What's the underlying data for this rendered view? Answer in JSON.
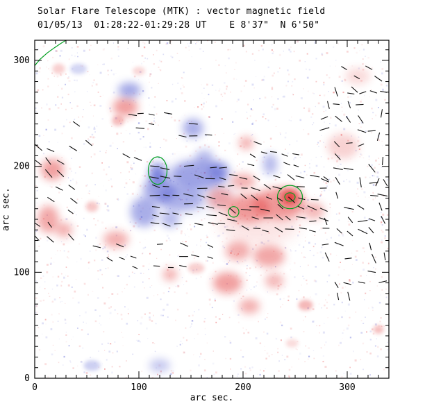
{
  "chart_data": {
    "type": "heatmap",
    "title": "Solar Flare Telescope (MTK) : vector magnetic field",
    "subtitle": "01/05/13  01:28:22-01:29:28 UT    E 8'37\"  N 6'50\"",
    "xlabel": "arc sec.",
    "ylabel": "arc sec.",
    "xlim": [
      0,
      340
    ],
    "ylim": [
      0,
      319
    ],
    "xticks": [
      0,
      100,
      200,
      300
    ],
    "yticks": [
      0,
      100,
      200,
      300
    ],
    "minor_tick_step": 10,
    "colors": {
      "positive": "#e23b3b",
      "negative": "#4a52cf",
      "contour": "#00a020",
      "vector": "#101010",
      "frame": "#000000",
      "background": "#ffffff"
    },
    "red_blobs": [
      [
        245,
        171,
        4,
        4,
        1.0
      ],
      [
        245,
        171,
        9,
        8,
        0.95
      ],
      [
        235,
        165,
        25,
        15,
        0.55
      ],
      [
        205,
        160,
        20,
        13,
        0.55
      ],
      [
        178,
        170,
        12,
        10,
        0.5
      ],
      [
        200,
        186,
        12,
        7,
        0.5
      ],
      [
        268,
        158,
        10,
        8,
        0.45
      ],
      [
        203,
        222,
        7,
        6,
        0.5
      ],
      [
        225,
        115,
        15,
        10,
        0.55
      ],
      [
        195,
        120,
        12,
        9,
        0.5
      ],
      [
        185,
        90,
        14,
        10,
        0.6
      ],
      [
        206,
        68,
        10,
        7,
        0.5
      ],
      [
        230,
        92,
        9,
        7,
        0.45
      ],
      [
        130,
        98,
        7,
        6,
        0.5
      ],
      [
        155,
        104,
        8,
        5,
        0.3
      ],
      [
        87,
        256,
        12,
        9,
        0.6
      ],
      [
        80,
        243,
        6,
        5,
        0.4
      ],
      [
        17,
        197,
        11,
        10,
        0.6
      ],
      [
        13,
        150,
        10,
        13,
        0.55
      ],
      [
        28,
        140,
        8,
        7,
        0.5
      ],
      [
        78,
        131,
        12,
        8,
        0.5
      ],
      [
        55,
        162,
        6,
        5,
        0.35
      ],
      [
        296,
        219,
        15,
        12,
        0.28
      ],
      [
        310,
        285,
        12,
        8,
        0.22
      ],
      [
        260,
        69,
        7,
        5,
        0.45
      ],
      [
        330,
        46,
        5,
        4,
        0.4
      ],
      [
        100,
        290,
        6,
        4,
        0.25
      ],
      [
        23,
        292,
        6,
        5,
        0.3
      ],
      [
        247,
        33,
        6,
        4,
        0.22
      ],
      [
        215,
        150,
        40,
        25,
        0.16
      ]
    ],
    "blue_blobs": [
      [
        157,
        192,
        26,
        14,
        0.6
      ],
      [
        120,
        178,
        16,
        12,
        0.6
      ],
      [
        118,
        193,
        8,
        10,
        0.85
      ],
      [
        105,
        157,
        13,
        14,
        0.6
      ],
      [
        140,
        170,
        22,
        12,
        0.5
      ],
      [
        177,
        196,
        10,
        9,
        0.55
      ],
      [
        163,
        209,
        9,
        7,
        0.45
      ],
      [
        152,
        236,
        10,
        9,
        0.6
      ],
      [
        91,
        272,
        11,
        7,
        0.65
      ],
      [
        226,
        202,
        7,
        10,
        0.5
      ],
      [
        130,
        150,
        9,
        8,
        0.5
      ],
      [
        150,
        180,
        40,
        24,
        0.15
      ],
      [
        55,
        12,
        8,
        5,
        0.35
      ],
      [
        120,
        12,
        10,
        6,
        0.4
      ],
      [
        42,
        292,
        8,
        5,
        0.3
      ]
    ],
    "contours": {
      "ellipses": [
        [
          245,
          171,
          12,
          11
        ],
        [
          245,
          171,
          5,
          4
        ],
        [
          118,
          196,
          9,
          13
        ],
        [
          191,
          157,
          5,
          5
        ]
      ],
      "corner_path": [
        [
          0,
          295
        ],
        [
          5,
          301
        ],
        [
          12,
          307
        ],
        [
          19,
          312
        ],
        [
          25,
          316
        ],
        [
          30,
          319
        ]
      ]
    },
    "vector_clusters": [
      {
        "x0": 115,
        "x1": 185,
        "y0": 145,
        "y1": 205,
        "dx": 11,
        "dy": 9,
        "angle": -8,
        "jitter": 14,
        "len": 8,
        "skip": 0.18,
        "seed": 11
      },
      {
        "x0": 3,
        "x1": 36,
        "y0": 133,
        "y1": 228,
        "dx": 11,
        "dy": 12,
        "angle": -38,
        "jitter": 16,
        "len": 8,
        "skip": 0.4,
        "seed": 22
      },
      {
        "x0": 190,
        "x1": 278,
        "y0": 140,
        "y1": 192,
        "dx": 11,
        "dy": 10,
        "angle": -18,
        "jitter": 24,
        "len": 8,
        "skip": 0.22,
        "seed": 33
      },
      {
        "x0": 95,
        "x1": 175,
        "y0": 104,
        "y1": 130,
        "dx": 12,
        "dy": 11,
        "angle": -12,
        "jitter": 16,
        "len": 7,
        "skip": 0.5,
        "seed": 44
      },
      {
        "x0": 280,
        "x1": 336,
        "y0": 78,
        "y1": 275,
        "dx": 11,
        "dy": 12,
        "angle": -30,
        "jitter": 55,
        "len": 8,
        "skip": 0.5,
        "seed": 55
      },
      {
        "x0": 92,
        "x1": 124,
        "y0": 238,
        "y1": 262,
        "dx": 11,
        "dy": 11,
        "angle": -6,
        "jitter": 10,
        "len": 7,
        "skip": 0.35,
        "seed": 66
      },
      {
        "x0": 142,
        "x1": 168,
        "y0": 230,
        "y1": 243,
        "dx": 12,
        "dy": 11,
        "angle": -5,
        "jitter": 8,
        "len": 7,
        "skip": 0.3,
        "seed": 77
      },
      {
        "x0": 208,
        "x1": 252,
        "y0": 202,
        "y1": 214,
        "dx": 11,
        "dy": 10,
        "angle": -20,
        "jitter": 15,
        "len": 7,
        "skip": 0.3,
        "seed": 88
      },
      {
        "x0": 298,
        "x1": 336,
        "y0": 274,
        "y1": 292,
        "dx": 11,
        "dy": 9,
        "angle": -28,
        "jitter": 14,
        "len": 7,
        "skip": 0.4,
        "seed": 99
      },
      {
        "x0": 60,
        "x1": 85,
        "y0": 114,
        "y1": 126,
        "dx": 11,
        "dy": 11,
        "angle": -25,
        "jitter": 12,
        "len": 7,
        "skip": 0.4,
        "seed": 110
      }
    ],
    "vectors_extra": [
      [
        333,
        250,
        80
      ],
      [
        330,
        228,
        75
      ],
      [
        334,
        205,
        85
      ],
      [
        329,
        185,
        65
      ],
      [
        332,
        162,
        -70
      ],
      [
        214,
        222,
        -20
      ],
      [
        88,
        210,
        -28
      ],
      [
        99,
        207,
        -22
      ],
      [
        40,
        240,
        -35
      ],
      [
        52,
        222,
        -40
      ],
      [
        128,
        250,
        -10
      ]
    ]
  }
}
